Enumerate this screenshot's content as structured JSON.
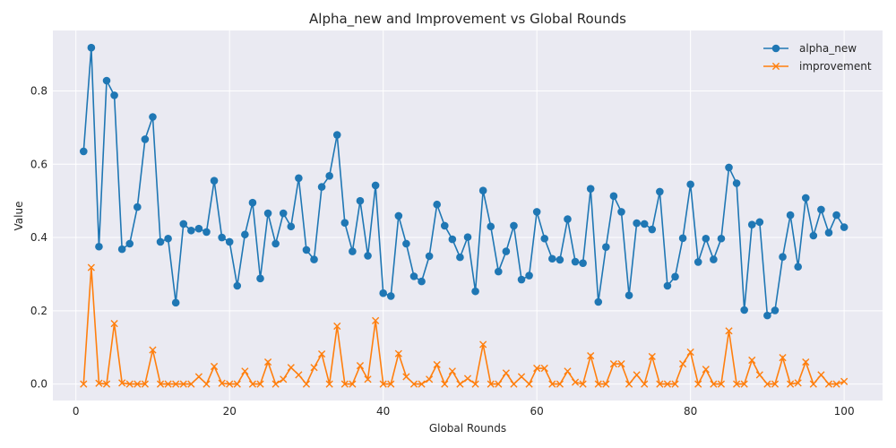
{
  "chart_data": {
    "type": "line",
    "title": "Alpha_new and Improvement vs Global Rounds",
    "xlabel": "Global Rounds",
    "ylabel": "Value",
    "xlim": [
      -3,
      105
    ],
    "ylim": [
      -0.045,
      0.965
    ],
    "xticks": [
      0,
      20,
      40,
      60,
      80,
      100
    ],
    "yticks": [
      0.0,
      0.2,
      0.4,
      0.6,
      0.8
    ],
    "ytick_labels": [
      "0.0",
      "0.2",
      "0.4",
      "0.6",
      "0.8"
    ],
    "grid": true,
    "legend_position": "top-right",
    "x": [
      1,
      2,
      3,
      4,
      5,
      6,
      7,
      8,
      9,
      10,
      11,
      12,
      13,
      14,
      15,
      16,
      17,
      18,
      19,
      20,
      21,
      22,
      23,
      24,
      25,
      26,
      27,
      28,
      29,
      30,
      31,
      32,
      33,
      34,
      35,
      36,
      37,
      38,
      39,
      40,
      41,
      42,
      43,
      44,
      45,
      46,
      47,
      48,
      49,
      50,
      51,
      52,
      53,
      54,
      55,
      56,
      57,
      58,
      59,
      60,
      61,
      62,
      63,
      64,
      65,
      66,
      67,
      68,
      69,
      70,
      71,
      72,
      73,
      74,
      75,
      76,
      77,
      78,
      79,
      80,
      81,
      82,
      83,
      84,
      85,
      86,
      87,
      88,
      89,
      90,
      91,
      92,
      93,
      94,
      95,
      96,
      97,
      98,
      99,
      100
    ],
    "series": [
      {
        "name": "alpha_new",
        "color": "#1f77b4",
        "marker": "circle",
        "values": [
          0.635,
          0.918,
          0.375,
          0.828,
          0.788,
          0.368,
          0.383,
          0.483,
          0.668,
          0.729,
          0.388,
          0.397,
          0.222,
          0.437,
          0.419,
          0.424,
          0.415,
          0.555,
          0.4,
          0.388,
          0.268,
          0.408,
          0.495,
          0.288,
          0.466,
          0.383,
          0.466,
          0.43,
          0.562,
          0.366,
          0.34,
          0.538,
          0.568,
          0.68,
          0.44,
          0.362,
          0.5,
          0.35,
          0.542,
          0.248,
          0.24,
          0.459,
          0.383,
          0.294,
          0.28,
          0.349,
          0.49,
          0.432,
          0.395,
          0.346,
          0.401,
          0.253,
          0.528,
          0.43,
          0.307,
          0.362,
          0.432,
          0.285,
          0.296,
          0.47,
          0.397,
          0.342,
          0.339,
          0.45,
          0.334,
          0.33,
          0.533,
          0.224,
          0.374,
          0.513,
          0.47,
          0.242,
          0.439,
          0.437,
          0.422,
          0.525,
          0.268,
          0.293,
          0.398,
          0.545,
          0.333,
          0.397,
          0.34,
          0.397,
          0.591,
          0.548,
          0.202,
          0.435,
          0.442,
          0.187,
          0.201,
          0.347,
          0.461,
          0.32,
          0.508,
          0.405,
          0.476,
          0.413,
          0.461,
          0.428
        ]
      },
      {
        "name": "improvement",
        "color": "#ff7f0e",
        "marker": "x",
        "values": [
          0.0,
          0.318,
          0.002,
          0.0,
          0.165,
          0.003,
          0.0,
          0.0,
          0.0,
          0.093,
          0.0,
          0.0,
          0.0,
          0.0,
          0.0,
          0.02,
          0.0,
          0.048,
          0.002,
          0.0,
          0.0,
          0.035,
          0.0,
          0.0,
          0.06,
          0.0,
          0.013,
          0.045,
          0.025,
          0.0,
          0.045,
          0.082,
          0.0,
          0.158,
          0.0,
          0.0,
          0.05,
          0.013,
          0.173,
          0.0,
          0.0,
          0.083,
          0.02,
          0.0,
          0.0,
          0.013,
          0.053,
          0.0,
          0.035,
          0.0,
          0.015,
          0.0,
          0.108,
          0.0,
          0.0,
          0.03,
          0.0,
          0.02,
          0.0,
          0.043,
          0.043,
          0.0,
          0.0,
          0.035,
          0.005,
          0.0,
          0.077,
          0.0,
          0.0,
          0.055,
          0.055,
          0.0,
          0.025,
          0.0,
          0.075,
          0.0,
          0.0,
          0.0,
          0.055,
          0.087,
          0.0,
          0.04,
          0.0,
          0.0,
          0.145,
          0.0,
          0.0,
          0.065,
          0.025,
          0.0,
          0.0,
          0.072,
          0.0,
          0.003,
          0.06,
          0.0,
          0.025,
          0.0,
          0.0,
          0.007
        ]
      }
    ]
  }
}
